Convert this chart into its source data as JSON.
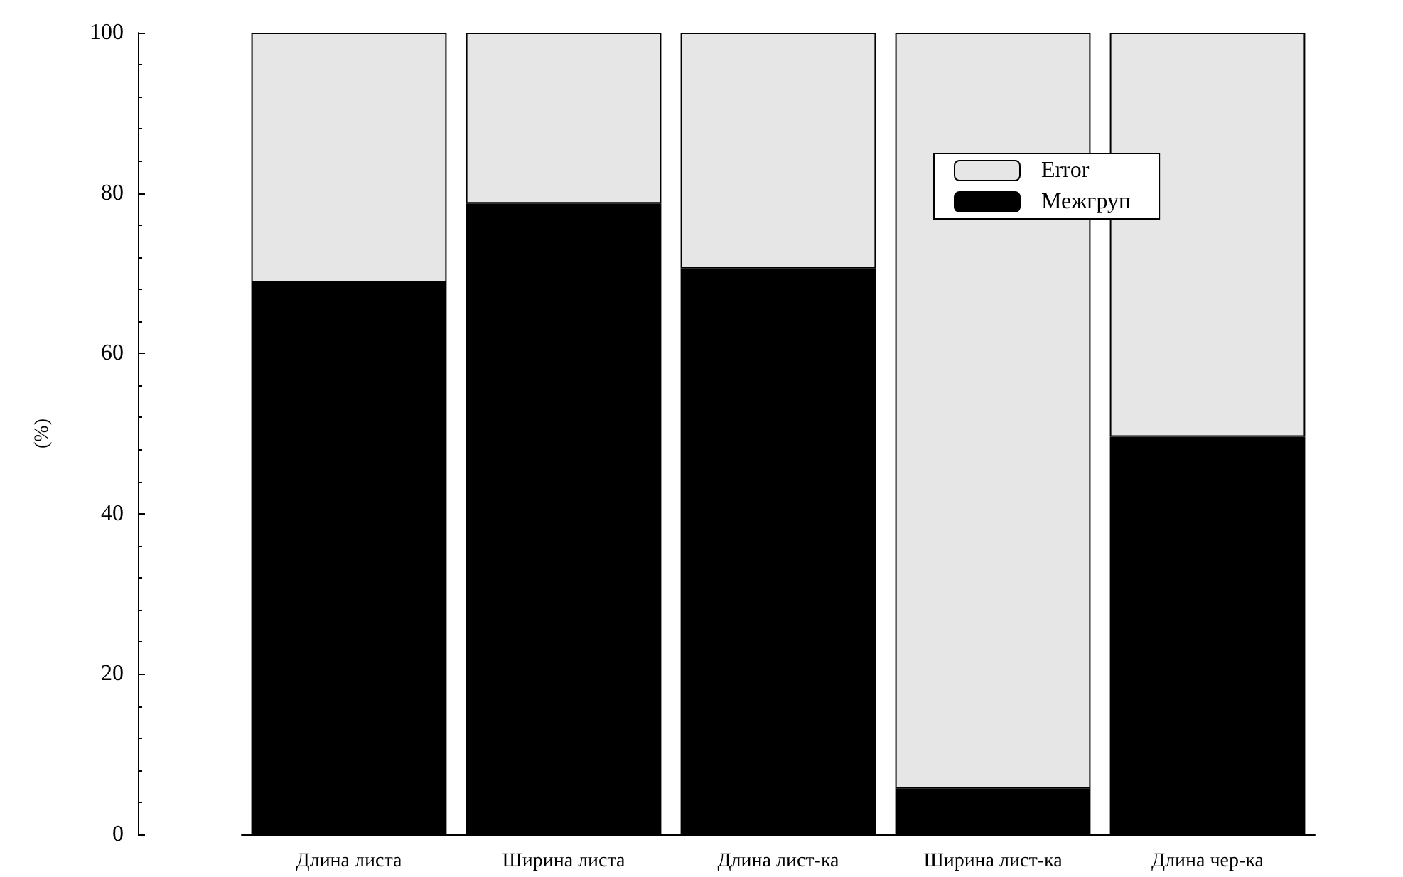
{
  "chart_data": {
    "type": "bar",
    "stacked": true,
    "ylabel": "(%)",
    "categories": [
      "Длина листа",
      "Ширина листа",
      "Длина лист-ка",
      "Ширина лист-ка",
      "Длина чер-ка"
    ],
    "series": [
      {
        "name": "Межгруп",
        "color": "#000000",
        "values": [
          68.8,
          78.7,
          70.6,
          5.7,
          49.6
        ]
      },
      {
        "name": "Error",
        "color": "#e6e6e6",
        "values": [
          31.2,
          21.3,
          29.4,
          94.3,
          50.4
        ]
      }
    ],
    "ylim": [
      0,
      100
    ],
    "yticks": [
      0,
      20,
      40,
      60,
      80,
      100
    ],
    "grid": false,
    "legend": "top right"
  }
}
